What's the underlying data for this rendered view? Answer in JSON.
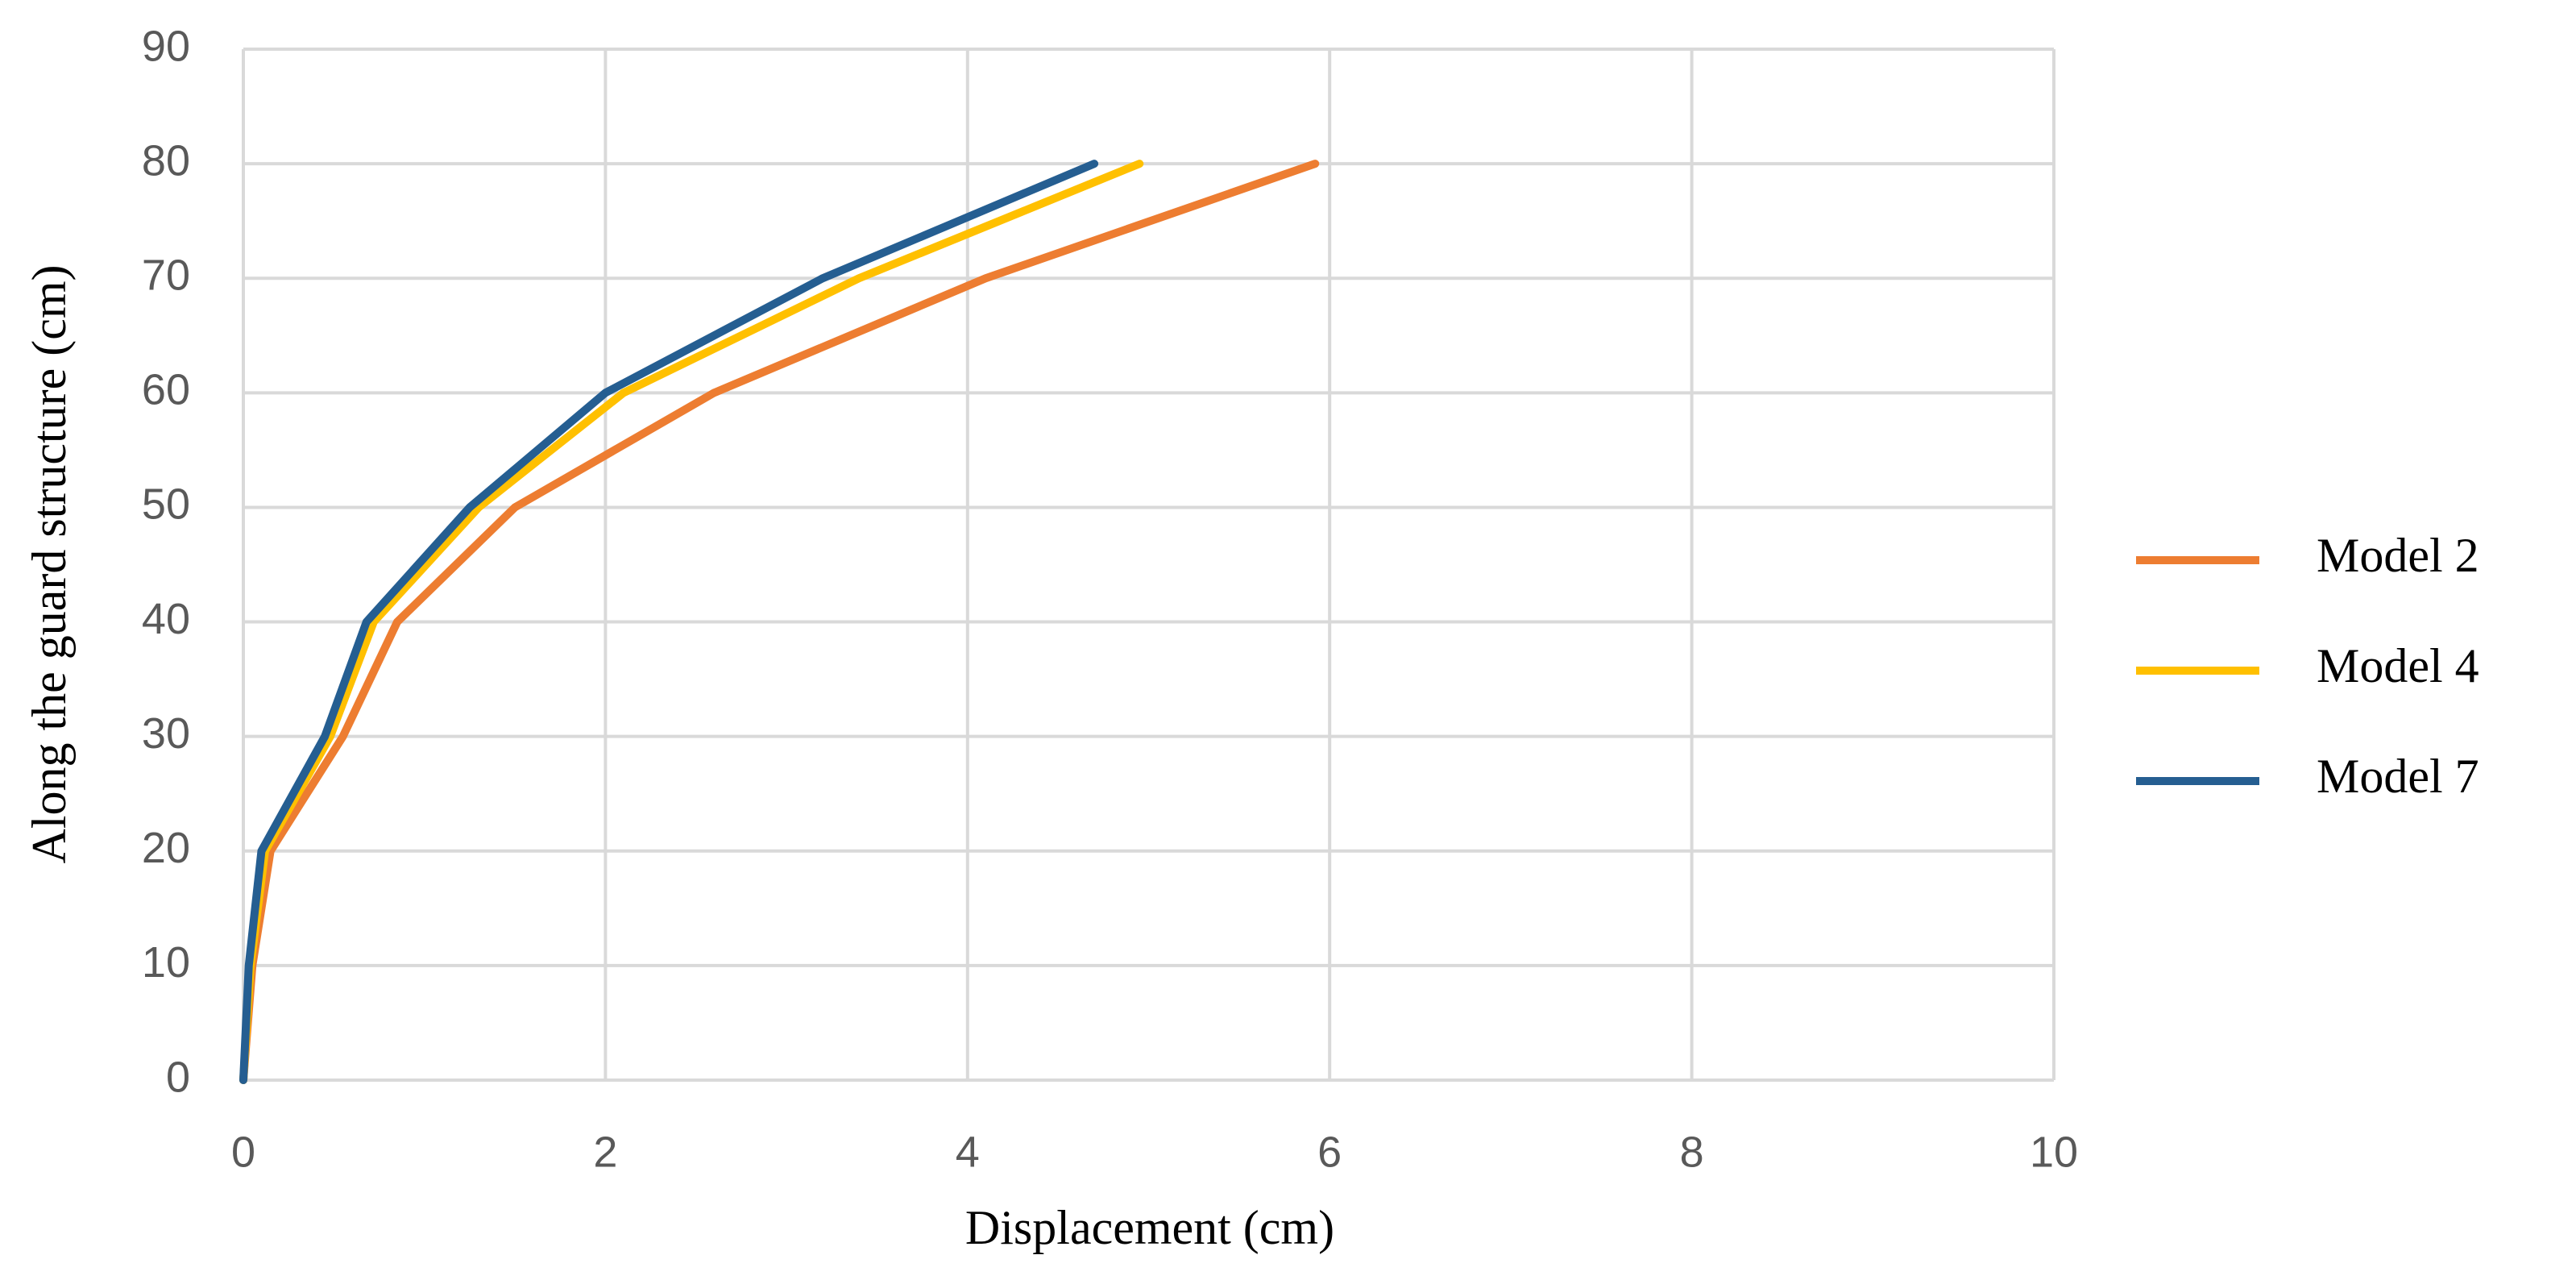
{
  "chart_data": {
    "type": "line",
    "x_label": "Displacement (cm)",
    "y_label": "Along the guard structure (cm)",
    "xlim": [
      0,
      10
    ],
    "xticks": [
      0,
      2,
      4,
      6,
      8,
      10
    ],
    "ylim": [
      0,
      90
    ],
    "yticks": [
      0,
      10,
      20,
      30,
      40,
      50,
      60,
      70,
      80,
      90
    ],
    "grid": true,
    "legend": "right",
    "series": [
      {
        "name": "Model 2",
        "color": "#ed7d31",
        "x": [
          0,
          0.05,
          0.15,
          0.55,
          0.85,
          1.5,
          2.6,
          4.1,
          5.92
        ],
        "values": [
          0,
          10,
          20,
          30,
          40,
          50,
          60,
          70,
          80
        ]
      },
      {
        "name": "Model 4",
        "color": "#ffc000",
        "x": [
          0,
          0.04,
          0.12,
          0.48,
          0.72,
          1.3,
          2.1,
          3.4,
          4.95
        ],
        "values": [
          0,
          10,
          20,
          30,
          40,
          50,
          60,
          70,
          80
        ]
      },
      {
        "name": "Model 7",
        "color": "#255e91",
        "x": [
          0,
          0.03,
          0.1,
          0.45,
          0.68,
          1.25,
          2.0,
          3.2,
          4.7
        ],
        "values": [
          0,
          10,
          20,
          30,
          40,
          50,
          60,
          70,
          80
        ]
      }
    ]
  }
}
